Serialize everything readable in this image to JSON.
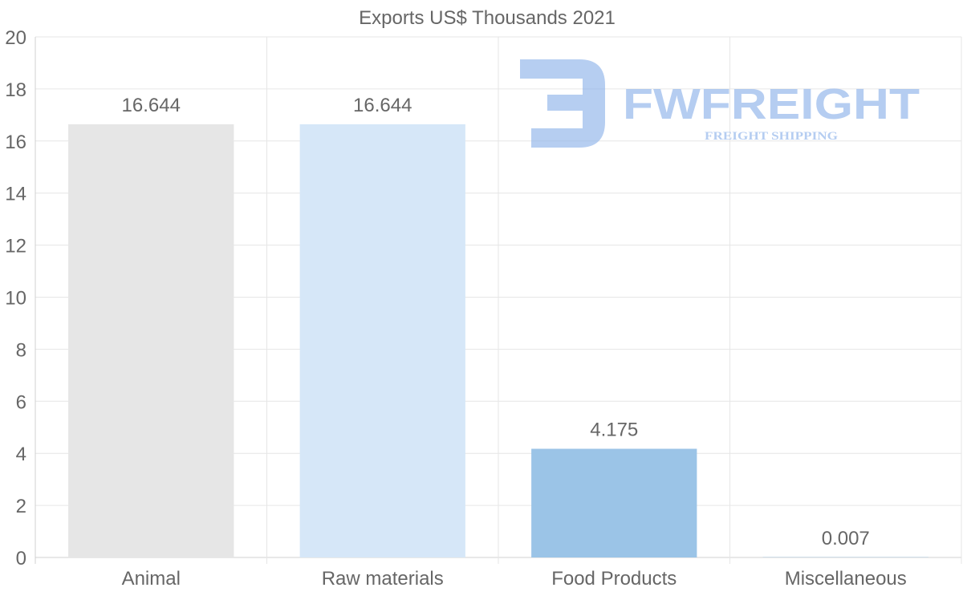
{
  "chart_data": {
    "type": "bar",
    "title": "Exports US$ Thousands 2021",
    "categories": [
      "Animal",
      "Raw materials",
      "Food Products",
      "Miscellaneous"
    ],
    "values": [
      16.644,
      16.644,
      4.175,
      0.007
    ],
    "value_labels": [
      "16.644",
      "16.644",
      "4.175",
      "0.007"
    ],
    "colors": [
      "#e6e6e6",
      "#d6e7f8",
      "#9bc4e7",
      "#6aa5db"
    ],
    "ylim": [
      0,
      20
    ],
    "yticks": [
      0,
      2,
      4,
      6,
      8,
      10,
      12,
      14,
      16,
      18,
      20
    ],
    "xlabel": "",
    "ylabel": "",
    "grid": true,
    "legend": "none"
  },
  "watermark": {
    "brand": "FWFREIGHT",
    "tagline": "FREIGHT SHIPPING",
    "color": "#8fb3ea"
  }
}
